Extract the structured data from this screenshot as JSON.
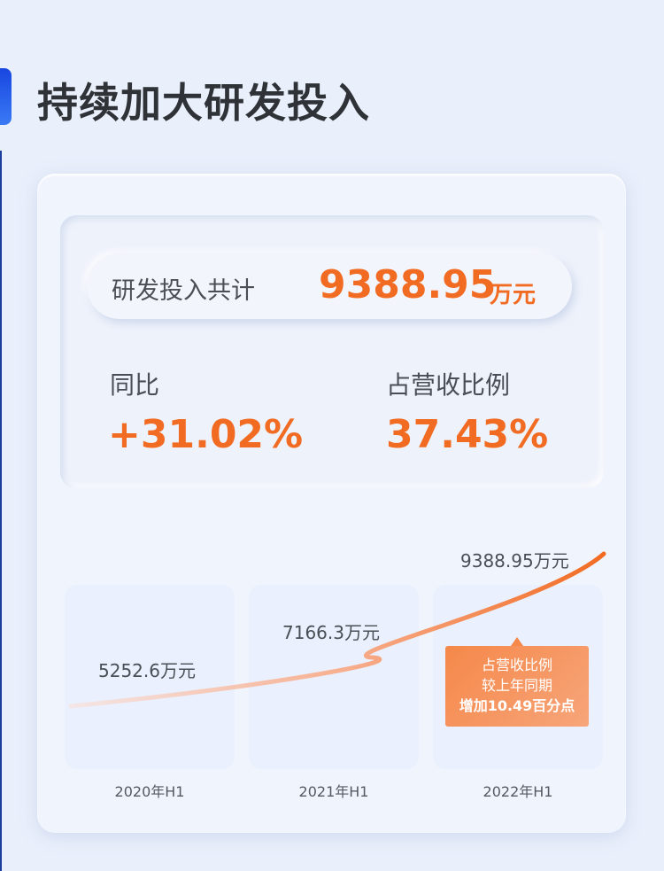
{
  "title": "持续加大研发投入",
  "total": {
    "label": "研发投入共计",
    "value": "9388.95",
    "unit": "万元"
  },
  "yoy": {
    "label": "同比",
    "value": "+31.02%"
  },
  "ratio": {
    "label": "占营收比例",
    "value": "37.43%"
  },
  "colors": {
    "accent": "#f26b22",
    "brand_blue": "#1846e0"
  },
  "chart_data": {
    "type": "line",
    "categories": [
      "2020年H1",
      "2021年H1",
      "2022年H1"
    ],
    "values": [
      5252.6,
      7166.3,
      9388.95
    ],
    "data_labels": [
      "5252.6万元",
      "7166.3万元",
      "9388.95万元"
    ],
    "annotation": {
      "line1": "占营收比例",
      "line2": "较上年同期",
      "line3": "增加10.49百分点"
    }
  }
}
